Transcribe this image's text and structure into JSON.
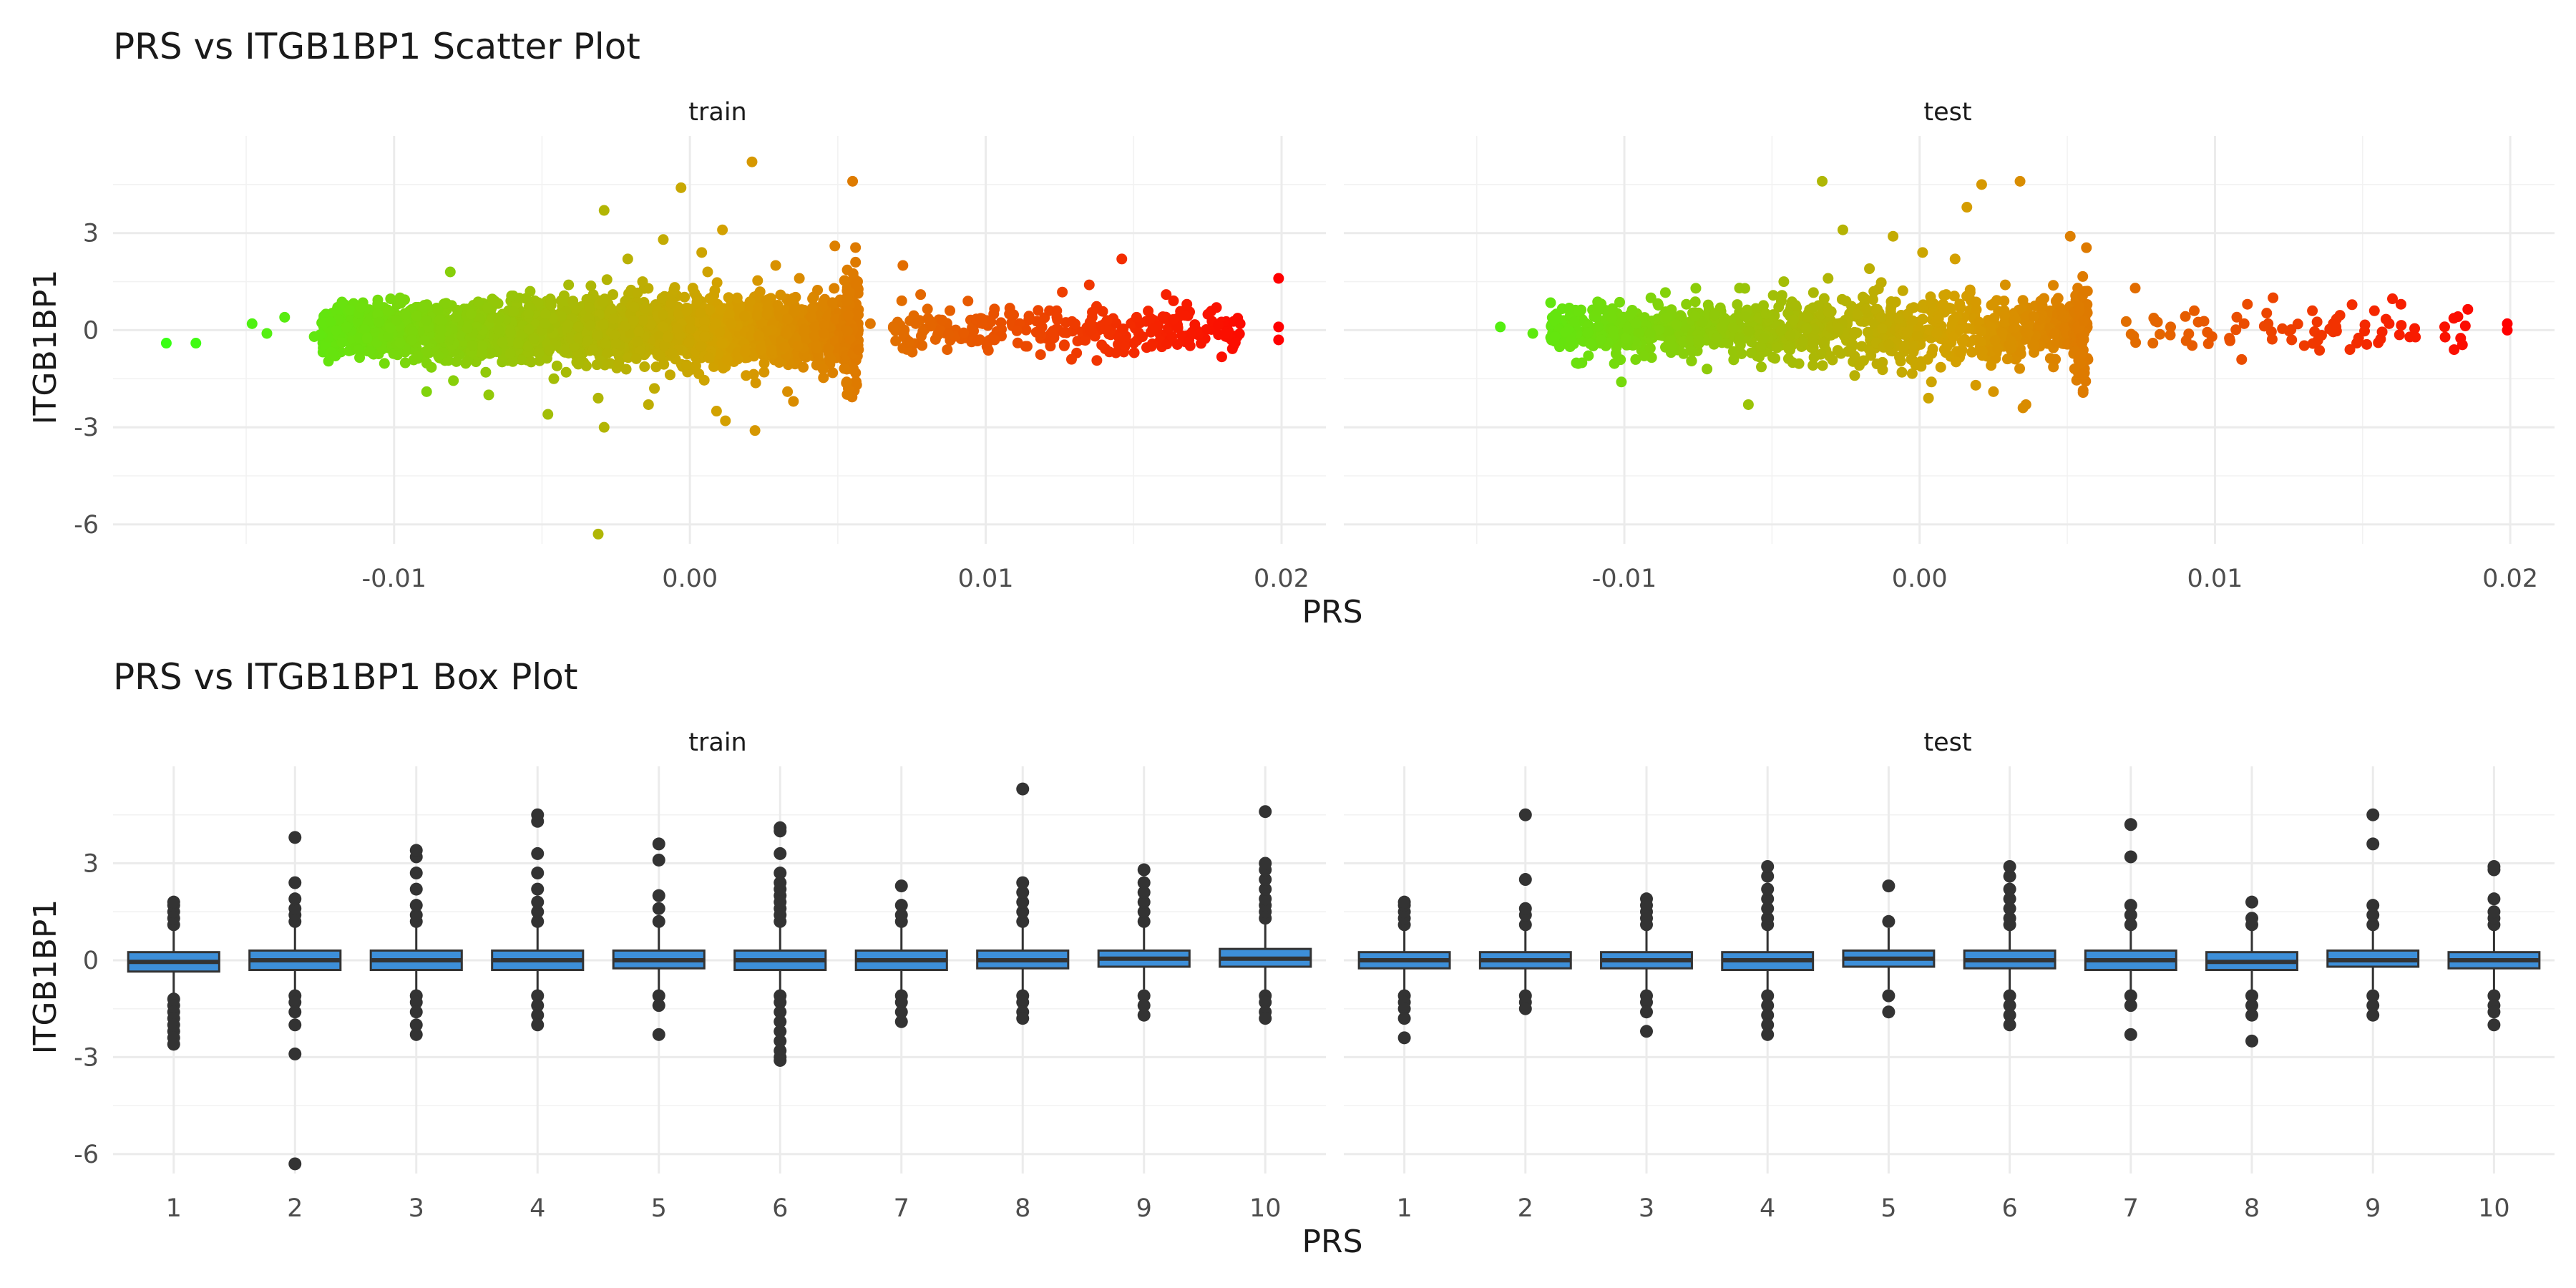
{
  "chart_data": [
    {
      "type": "scatter",
      "title": "PRS vs ITGB1BP1 Scatter Plot",
      "xlabel": "PRS",
      "ylabel": "ITGB1BP1",
      "facets": [
        "train",
        "test"
      ],
      "xlim": [
        -0.0195,
        0.0215
      ],
      "ylim": [
        -6.6,
        6.0
      ],
      "x_ticks": [
        -0.01,
        0.0,
        0.01,
        0.02
      ],
      "x_tick_labels": [
        "-0.01",
        "0.00",
        "0.01",
        "0.02"
      ],
      "y_ticks": [
        -6,
        -3,
        0,
        3
      ],
      "y_tick_labels": [
        "-6",
        "-3",
        "0",
        "3"
      ],
      "grid": true,
      "color_scale": {
        "low": "#39ff14",
        "mid": "#d4a000",
        "high": "#ff0000"
      },
      "notes": "Color encodes PRS value (green low, red high); dense cloud of points centered near ITGB1BP1 = 0",
      "series": [
        {
          "name": "train",
          "x": [
            -0.0177,
            -0.0167,
            -0.0148,
            -0.0143,
            -0.0137,
            -0.0127,
            -0.0116,
            -0.0112,
            -0.0102,
            -0.0098,
            -0.0094,
            -0.0089,
            -0.0085,
            -0.0081,
            -0.0074,
            -0.0069,
            -0.0066,
            -0.0058,
            -0.0054,
            -0.0049,
            -0.0046,
            -0.0041,
            -0.0034,
            -0.0031,
            -0.0029,
            -0.0024,
            -0.0021,
            -0.0019,
            -0.0016,
            -0.0012,
            -0.0009,
            -0.0006,
            -0.0003,
            -0.0001,
            0.0002,
            0.0004,
            0.0006,
            0.0009,
            0.0011,
            0.0014,
            0.0016,
            0.0019,
            0.0021,
            0.0024,
            0.0029,
            0.0033,
            0.0037,
            0.0041,
            0.0045,
            0.0049,
            0.0053,
            0.0055,
            0.0057,
            0.0056,
            0.0072,
            0.0074,
            0.0078,
            0.0081,
            0.0087,
            0.0094,
            0.0099,
            0.0103,
            0.0108,
            0.0114,
            0.0119,
            0.0124,
            0.0129,
            0.0135,
            0.0141,
            0.0144,
            0.0146,
            0.0151,
            0.0156,
            0.0161,
            0.0163,
            0.0168,
            0.0178,
            0.0181,
            0.0186,
            0.0199,
            0.0199,
            0.0199,
            -0.0031,
            0.0022,
            -0.0014,
            0.0053,
            -0.0029,
            -0.0048,
            0.0035,
            -0.0068,
            0.0012,
            -0.0089,
            0.0061,
            0.0005
          ],
          "y": [
            -0.4,
            -0.4,
            0.2,
            -0.1,
            0.4,
            -0.2,
            0.1,
            -0.6,
            0.6,
            1.0,
            -0.3,
            0.3,
            -0.8,
            1.8,
            0.5,
            -1.3,
            0.9,
            -0.4,
            1.2,
            0.2,
            -1.5,
            1.4,
            0.7,
            -2.1,
            3.7,
            -1.0,
            2.2,
            0.3,
            1.5,
            -1.8,
            2.8,
            -0.7,
            4.4,
            0.6,
            -1.1,
            2.4,
            1.8,
            -2.5,
            3.1,
            0.2,
            1.0,
            -1.4,
            5.2,
            -0.6,
            2.0,
            -1.9,
            1.6,
            0.4,
            -1.2,
            2.6,
            0.9,
            4.6,
            -0.6,
            2.1,
            2.0,
            -0.4,
            1.1,
            0.3,
            -0.6,
            0.9,
            0.2,
            -0.3,
            0.5,
            -0.5,
            0.1,
            0.6,
            -0.9,
            1.4,
            0.3,
            -0.7,
            2.2,
            0.4,
            -0.5,
            1.1,
            -0.2,
            0.8,
            0.7,
            -0.1,
            0.2,
            1.6,
            0.1,
            -0.3,
            -6.3,
            -3.1,
            -2.3,
            -1.6,
            -3.0,
            -2.6,
            -2.2,
            -2.0,
            -2.8,
            -1.9,
            0.2,
            -0.2
          ]
        },
        {
          "name": "test",
          "x": [
            -0.0142,
            -0.0131,
            -0.0123,
            -0.0118,
            -0.0109,
            -0.0101,
            -0.0096,
            -0.0091,
            -0.0084,
            -0.0079,
            -0.0072,
            -0.0066,
            -0.0061,
            -0.0057,
            -0.0052,
            -0.0046,
            -0.0043,
            -0.0038,
            -0.0033,
            -0.0031,
            -0.0026,
            -0.0022,
            -0.0017,
            -0.0013,
            -0.0009,
            -0.0006,
            -0.0002,
            0.0001,
            0.0004,
            0.0009,
            0.0012,
            0.0016,
            0.0021,
            0.0025,
            0.0029,
            0.0034,
            0.0036,
            0.0041,
            0.0046,
            0.0051,
            0.0054,
            0.0056,
            0.0073,
            0.0079,
            0.0085,
            0.0093,
            0.0099,
            0.0105,
            0.0111,
            0.0118,
            0.0126,
            0.0133,
            0.0141,
            0.0148,
            0.0154,
            0.0159,
            0.0163,
            0.0181,
            0.0199,
            0.0199,
            -0.0058,
            0.0003,
            0.0035,
            -0.0022,
            0.0019
          ],
          "y": [
            0.1,
            -0.1,
            0.5,
            -0.3,
            0.6,
            -1.6,
            0.2,
            1.0,
            -0.5,
            0.8,
            -1.2,
            0.3,
            1.3,
            -0.7,
            0.5,
            1.5,
            -1.0,
            0.4,
            4.6,
            1.6,
            3.1,
            -0.8,
            1.9,
            0.4,
            2.9,
            -1.3,
            0.7,
            2.4,
            -1.6,
            1.1,
            2.2,
            3.8,
            4.5,
            -1.9,
            1.4,
            4.6,
            -2.3,
            0.9,
            -0.9,
            2.9,
            0.6,
            1.2,
            1.3,
            -0.4,
            0.1,
            0.6,
            -0.2,
            -0.3,
            0.8,
            0.2,
            -0.3,
            0.6,
            0.1,
            -0.4,
            0.6,
            0.2,
            0.8,
            -0.6,
            0.2,
            0.0,
            -2.3,
            -2.1,
            -2.4,
            -1.4,
            -1.7
          ]
        }
      ]
    },
    {
      "type": "box",
      "title": "PRS vs ITGB1BP1 Box Plot",
      "xlabel": "PRS",
      "ylabel": "ITGB1BP1",
      "facets": [
        "train",
        "test"
      ],
      "categories": [
        "1",
        "2",
        "3",
        "4",
        "5",
        "6",
        "7",
        "8",
        "9",
        "10"
      ],
      "ylim": [
        -6.6,
        6.0
      ],
      "y_ticks": [
        -6,
        -3,
        0,
        3
      ],
      "y_tick_labels": [
        "-6",
        "-3",
        "0",
        "3"
      ],
      "grid": true,
      "box_fill": "#3d8fd9",
      "series": [
        {
          "name": "train",
          "median": [
            -0.05,
            0.0,
            0.0,
            0.0,
            0.0,
            0.0,
            0.0,
            0.0,
            0.05,
            0.05
          ],
          "q1": [
            -0.35,
            -0.3,
            -0.3,
            -0.3,
            -0.25,
            -0.3,
            -0.3,
            -0.25,
            -0.2,
            -0.2
          ],
          "q3": [
            0.25,
            0.3,
            0.3,
            0.3,
            0.3,
            0.3,
            0.3,
            0.3,
            0.3,
            0.35
          ],
          "whisker_low": [
            -1.1,
            -0.95,
            -0.95,
            -0.95,
            -0.95,
            -0.95,
            -1.0,
            -0.95,
            -0.9,
            -0.95
          ],
          "whisker_high": [
            1.0,
            1.1,
            1.1,
            1.1,
            1.1,
            1.1,
            1.1,
            1.1,
            1.1,
            1.2
          ],
          "outliers": [
            [
              1.1,
              1.3,
              1.5,
              1.7,
              1.8,
              -1.2,
              -1.4,
              -1.6,
              -1.8,
              -2.0,
              -2.2,
              -2.4,
              -2.6
            ],
            [
              1.2,
              1.4,
              1.6,
              1.9,
              2.4,
              3.8,
              -1.1,
              -1.3,
              -1.6,
              -2.0,
              -2.9,
              -6.3
            ],
            [
              1.2,
              1.4,
              1.7,
              2.2,
              2.7,
              3.2,
              3.4,
              -1.1,
              -1.3,
              -1.6,
              -2.0,
              -2.3
            ],
            [
              1.2,
              1.5,
              1.8,
              2.2,
              2.7,
              3.3,
              4.3,
              4.5,
              -1.1,
              -1.4,
              -1.7,
              -2.0
            ],
            [
              1.2,
              1.6,
              2.0,
              3.1,
              3.6,
              -1.1,
              -1.4,
              -2.3
            ],
            [
              1.2,
              1.4,
              1.6,
              1.8,
              2.0,
              2.2,
              2.4,
              2.7,
              3.3,
              4.0,
              4.1,
              -1.1,
              -1.3,
              -1.6,
              -1.9,
              -2.2,
              -2.5,
              -2.8,
              -3.0,
              -3.1
            ],
            [
              1.2,
              1.4,
              1.7,
              2.3,
              -1.1,
              -1.3,
              -1.6,
              -1.9
            ],
            [
              1.2,
              1.5,
              1.8,
              2.1,
              2.4,
              5.3,
              -1.1,
              -1.3,
              -1.6,
              -1.8
            ],
            [
              1.2,
              1.5,
              1.8,
              2.1,
              2.4,
              2.8,
              -1.1,
              -1.4,
              -1.7
            ],
            [
              1.3,
              1.5,
              1.7,
              1.9,
              2.2,
              2.5,
              2.8,
              3.0,
              4.6,
              -1.1,
              -1.3,
              -1.6,
              -1.8
            ]
          ]
        },
        {
          "name": "test",
          "median": [
            0.0,
            0.0,
            0.0,
            0.0,
            0.05,
            0.0,
            0.0,
            -0.05,
            0.0,
            0.0
          ],
          "q1": [
            -0.25,
            -0.25,
            -0.25,
            -0.3,
            -0.2,
            -0.25,
            -0.3,
            -0.3,
            -0.2,
            -0.25
          ],
          "q3": [
            0.25,
            0.25,
            0.25,
            0.25,
            0.3,
            0.3,
            0.3,
            0.25,
            0.3,
            0.25
          ],
          "whisker_low": [
            -0.95,
            -0.95,
            -0.95,
            -0.95,
            -0.9,
            -0.95,
            -1.0,
            -1.0,
            -0.9,
            -0.95
          ],
          "whisker_high": [
            1.0,
            1.0,
            1.0,
            1.0,
            1.0,
            1.05,
            1.1,
            1.0,
            1.05,
            1.0
          ],
          "outliers": [
            [
              1.1,
              1.3,
              1.5,
              1.7,
              1.8,
              -1.1,
              -1.3,
              -1.5,
              -1.8,
              -2.4
            ],
            [
              1.1,
              1.4,
              1.6,
              2.5,
              4.5,
              -1.1,
              -1.3,
              -1.5
            ],
            [
              1.1,
              1.3,
              1.5,
              1.7,
              1.9,
              -1.1,
              -1.3,
              -1.6,
              -2.2
            ],
            [
              1.1,
              1.3,
              1.6,
              1.9,
              2.2,
              2.6,
              2.9,
              -1.1,
              -1.4,
              -1.7,
              -2.0,
              -2.3
            ],
            [
              1.2,
              2.3,
              -1.1,
              -1.6
            ],
            [
              1.1,
              1.3,
              1.6,
              1.9,
              2.2,
              2.6,
              2.9,
              -1.1,
              -1.4,
              -1.7,
              -2.0
            ],
            [
              1.1,
              1.4,
              1.7,
              3.2,
              4.2,
              -1.1,
              -1.4,
              -2.3
            ],
            [
              1.1,
              1.3,
              1.8,
              -1.1,
              -1.4,
              -1.7,
              -2.5
            ],
            [
              1.1,
              1.4,
              1.7,
              3.6,
              4.5,
              -1.1,
              -1.4,
              -1.7
            ],
            [
              1.1,
              1.3,
              1.5,
              1.9,
              2.8,
              2.9,
              -1.1,
              -1.4,
              -1.6,
              -2.0
            ]
          ]
        }
      ]
    }
  ]
}
